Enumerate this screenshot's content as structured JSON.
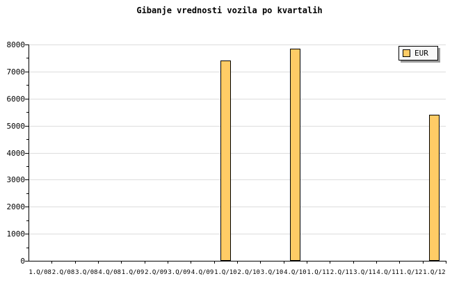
{
  "title": "Gibanje vrednosti vozila po kvartalih",
  "legend": {
    "label": "EUR",
    "position": "top-right"
  },
  "colors": {
    "background": "#FFFFFF",
    "bar_fill": "#FFCC66",
    "bar_border": "#000000",
    "gridline": "#DDDDDD",
    "axis": "#000000",
    "text": "#000000",
    "legend_bg": "#F8F8F8",
    "legend_shadow": "#999999"
  },
  "chart_data": {
    "type": "bar",
    "title": "Gibanje vrednosti vozila po kvartalih",
    "xlabel": "",
    "ylabel": "",
    "categories": [
      "1.Q/08",
      "2.Q/08",
      "3.Q/08",
      "4.Q/08",
      "1.Q/09",
      "2.Q/09",
      "3.Q/09",
      "4.Q/09",
      "1.Q/10",
      "2.Q/10",
      "3.Q/10",
      "4.Q/10",
      "1.Q/11",
      "2.Q/11",
      "3.Q/11",
      "4.Q/11",
      "1.Q/12",
      "1.Q/12"
    ],
    "series": [
      {
        "name": "EUR",
        "values": [
          null,
          null,
          null,
          null,
          null,
          null,
          null,
          null,
          7400,
          null,
          null,
          7850,
          null,
          null,
          null,
          null,
          null,
          5400
        ]
      }
    ],
    "ylim": [
      0,
      8000
    ],
    "ytick_step": 1000,
    "yminor_tick_step": 500,
    "ytick_labels": [
      "0",
      "1000",
      "2000",
      "3000",
      "4000",
      "5000",
      "6000",
      "7000",
      "8000"
    ],
    "grid": "horizontal-major-only",
    "legend_position": "top-right"
  }
}
